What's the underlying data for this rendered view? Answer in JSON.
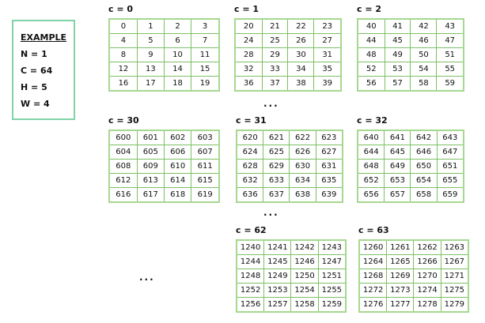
{
  "example": {
    "title": "EXAMPLE",
    "lines": [
      "N = 1",
      "C = 64",
      "H = 5",
      "W = 4"
    ]
  },
  "ellipsis": "...",
  "tables": [
    {
      "label": "c = 0",
      "rows": [
        [
          "0",
          "1",
          "2",
          "3"
        ],
        [
          "4",
          "5",
          "6",
          "7"
        ],
        [
          "8",
          "9",
          "10",
          "11"
        ],
        [
          "12",
          "13",
          "14",
          "15"
        ],
        [
          "16",
          "17",
          "18",
          "19"
        ]
      ]
    },
    {
      "label": "c = 1",
      "rows": [
        [
          "20",
          "21",
          "22",
          "23"
        ],
        [
          "24",
          "25",
          "26",
          "27"
        ],
        [
          "28",
          "29",
          "30",
          "31"
        ],
        [
          "32",
          "33",
          "34",
          "35"
        ],
        [
          "36",
          "37",
          "38",
          "39"
        ]
      ]
    },
    {
      "label": "c = 2",
      "rows": [
        [
          "40",
          "41",
          "42",
          "43"
        ],
        [
          "44",
          "45",
          "46",
          "47"
        ],
        [
          "48",
          "49",
          "50",
          "51"
        ],
        [
          "52",
          "53",
          "54",
          "55"
        ],
        [
          "56",
          "57",
          "58",
          "59"
        ]
      ]
    },
    {
      "label": "c = 30",
      "rows": [
        [
          "600",
          "601",
          "602",
          "603"
        ],
        [
          "604",
          "605",
          "606",
          "607"
        ],
        [
          "608",
          "609",
          "610",
          "611"
        ],
        [
          "612",
          "613",
          "614",
          "615"
        ],
        [
          "616",
          "617",
          "618",
          "619"
        ]
      ]
    },
    {
      "label": "c = 31",
      "rows": [
        [
          "620",
          "621",
          "622",
          "623"
        ],
        [
          "624",
          "625",
          "626",
          "627"
        ],
        [
          "628",
          "629",
          "630",
          "631"
        ],
        [
          "632",
          "633",
          "634",
          "635"
        ],
        [
          "636",
          "637",
          "638",
          "639"
        ]
      ]
    },
    {
      "label": "c = 32",
      "rows": [
        [
          "640",
          "641",
          "642",
          "643"
        ],
        [
          "644",
          "645",
          "646",
          "647"
        ],
        [
          "648",
          "649",
          "650",
          "651"
        ],
        [
          "652",
          "653",
          "654",
          "655"
        ],
        [
          "656",
          "657",
          "658",
          "659"
        ]
      ]
    },
    {
      "label": "c = 62",
      "rows": [
        [
          "1240",
          "1241",
          "1242",
          "1243"
        ],
        [
          "1244",
          "1245",
          "1246",
          "1247"
        ],
        [
          "1248",
          "1249",
          "1250",
          "1251"
        ],
        [
          "1252",
          "1253",
          "1254",
          "1255"
        ],
        [
          "1256",
          "1257",
          "1258",
          "1259"
        ]
      ]
    },
    {
      "label": "c = 63",
      "rows": [
        [
          "1260",
          "1261",
          "1262",
          "1263"
        ],
        [
          "1264",
          "1265",
          "1266",
          "1267"
        ],
        [
          "1268",
          "1269",
          "1270",
          "1271"
        ],
        [
          "1272",
          "1273",
          "1274",
          "1275"
        ],
        [
          "1276",
          "1277",
          "1278",
          "1279"
        ]
      ]
    }
  ]
}
